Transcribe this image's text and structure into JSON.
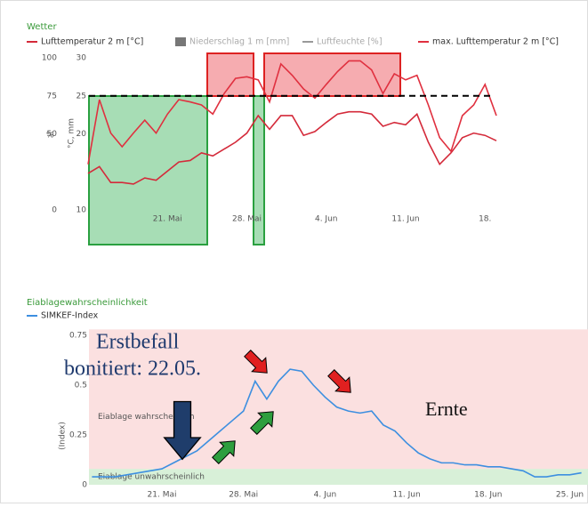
{
  "chart_data": [
    {
      "type": "line",
      "title": "Wetter",
      "ylabel": "%",
      "y2label": "°C, mm",
      "categories": [
        null,
        null,
        null,
        null,
        null,
        null,
        null,
        "21. Mai",
        null,
        null,
        null,
        null,
        null,
        null,
        "28. Mai",
        null,
        null,
        null,
        null,
        null,
        null,
        "4. Jun",
        null,
        null,
        null,
        null,
        null,
        null,
        "11. Jun",
        null,
        null,
        null,
        null,
        null,
        null,
        "18.",
        null
      ],
      "ylim": [
        0,
        100
      ],
      "yticks": [
        0,
        50,
        75,
        100
      ],
      "y2lim": [
        10,
        30
      ],
      "y2ticks": [
        10,
        20,
        25,
        30
      ],
      "threshold": 25,
      "series": [
        {
          "name": "Lufttemperatur 2 m [°C]",
          "color": "#d42a3a",
          "axis": "y2",
          "values": [
            14.8,
            15.7,
            13.6,
            13.6,
            13.4,
            14.2,
            13.9,
            15.1,
            16.3,
            16.5,
            17.5,
            17.1,
            18.0,
            18.9,
            20.1,
            22.4,
            20.6,
            22.4,
            22.4,
            19.8,
            20.3,
            21.5,
            22.6,
            22.9,
            22.9,
            22.6,
            21.0,
            21.5,
            21.2,
            22.6,
            18.9,
            16.0,
            17.5,
            19.5,
            20.1,
            19.8,
            19.1
          ]
        },
        {
          "name": "Niederschlag 1 m [mm]",
          "color": "#666666",
          "axis": "y2",
          "hidden": true
        },
        {
          "name": "Luftfeuchte [%]",
          "color": "#888888",
          "hidden": true
        },
        {
          "name": "max. Lufttemperatur 2 m [°C]",
          "color": "#e0303f",
          "axis": "y2",
          "values": [
            16.0,
            24.5,
            20.1,
            18.3,
            20.1,
            21.8,
            20.1,
            22.6,
            24.5,
            24.2,
            23.8,
            22.6,
            25.3,
            27.3,
            27.5,
            27.1,
            24.2,
            29.2,
            27.7,
            25.9,
            24.7,
            26.5,
            28.2,
            29.6,
            29.6,
            28.4,
            25.3,
            27.9,
            27.1,
            27.7,
            23.8,
            19.5,
            17.7,
            22.4,
            23.8,
            26.5,
            22.4
          ]
        }
      ]
    },
    {
      "type": "line",
      "title": "Eiablagewahrscheinlichkeit",
      "ylabel": "(Index)",
      "categories": [
        null,
        null,
        null,
        null,
        null,
        null,
        "21. Mai",
        null,
        null,
        null,
        null,
        null,
        null,
        "28. Mai",
        null,
        null,
        null,
        null,
        null,
        null,
        "4. Jun",
        null,
        null,
        null,
        null,
        null,
        null,
        "11. Jun",
        null,
        null,
        null,
        null,
        null,
        null,
        "18. Jun",
        null,
        null,
        null,
        null,
        null,
        null,
        "25. Jun",
        null
      ],
      "ylim": [
        0,
        0.78
      ],
      "yticks": [
        0,
        0.25,
        0.5,
        0.75
      ],
      "plot_bands": [
        {
          "from": 0,
          "to": 0.08,
          "color": "#d8f0d8",
          "label": "Eiablage unwahrscheinlich"
        },
        {
          "from": 0.08,
          "to": 0.78,
          "color": "#fbe0e0",
          "label": "Eiablage wahrscheinlich"
        }
      ],
      "series": [
        {
          "name": "SIMKEF-Index",
          "color": "#3d8fe0",
          "values": [
            0.04,
            0.04,
            0.04,
            0.05,
            0.06,
            0.07,
            0.08,
            0.11,
            0.14,
            0.17,
            0.22,
            0.27,
            0.32,
            0.37,
            0.52,
            0.43,
            0.52,
            0.58,
            0.57,
            0.5,
            0.44,
            0.39,
            0.37,
            0.36,
            0.37,
            0.3,
            0.27,
            0.21,
            0.16,
            0.13,
            0.11,
            0.11,
            0.1,
            0.1,
            0.09,
            0.09,
            0.08,
            0.07,
            0.04,
            0.04,
            0.05,
            0.05,
            0.06
          ]
        }
      ],
      "annotations": [
        "Erstbefall",
        "bonitiert: 22.05.",
        "Ernte"
      ]
    }
  ]
}
